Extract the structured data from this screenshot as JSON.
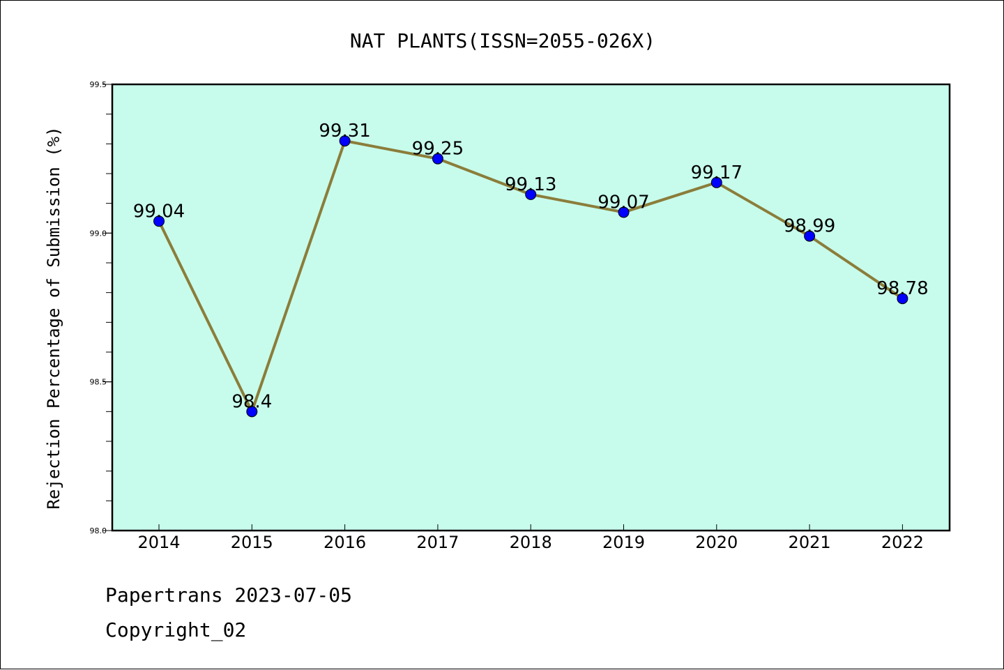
{
  "chart_data": {
    "type": "line",
    "title": "NAT PLANTS(ISSN=2055-026X)",
    "xlabel": "",
    "ylabel": "Rejection Percentage of Submission (%)",
    "categories": [
      "2014",
      "2015",
      "2016",
      "2017",
      "2018",
      "2019",
      "2020",
      "2021",
      "2022"
    ],
    "series": [
      {
        "values": [
          99.04,
          98.4,
          99.31,
          99.25,
          99.13,
          99.07,
          99.17,
          98.99,
          98.78
        ],
        "data_labels": [
          "99.04",
          "98.4",
          "99.31",
          "99.25",
          "99.13",
          "99.07",
          "99.17",
          "98.99",
          "98.78"
        ]
      }
    ],
    "ylim": [
      98.0,
      99.5
    ],
    "y_ticks": [
      "98.0",
      "98.5",
      "99.0",
      "99.5"
    ],
    "y_minor_step": 0.1,
    "grid": false,
    "colors": {
      "plot_background": "#c7fcec",
      "line": "#8b7d3a",
      "marker": "#0000ff"
    }
  },
  "footer": {
    "line1": "Papertrans 2023-07-05",
    "line2": "Copyright_02"
  }
}
